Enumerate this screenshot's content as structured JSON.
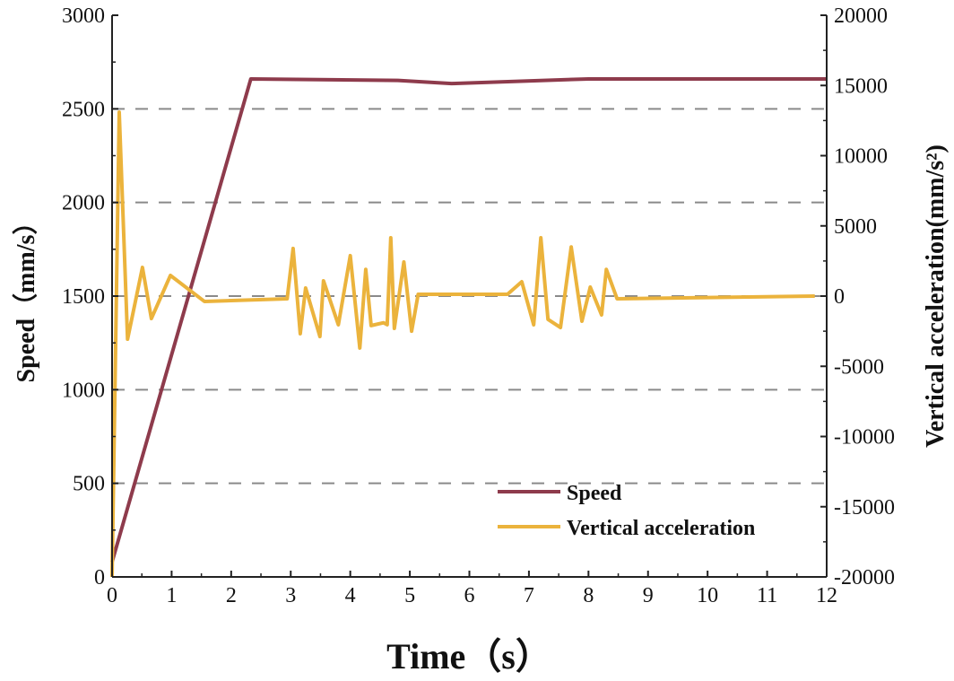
{
  "chart_data": {
    "type": "line",
    "title": "",
    "xlabel": "Time（s）",
    "ylabel": "Speed（mm/s）",
    "y2label": "Vertical acceleration(mm/s²)",
    "xlim": [
      0,
      12
    ],
    "ylim": [
      0,
      3000
    ],
    "y2lim": [
      -20000,
      20000
    ],
    "xticks": [
      0,
      1,
      2,
      3,
      4,
      5,
      6,
      7,
      8,
      9,
      10,
      11,
      12
    ],
    "yticks": [
      0,
      500,
      1000,
      1500,
      2000,
      2500,
      3000
    ],
    "y2ticks": [
      -20000,
      -15000,
      -10000,
      -5000,
      0,
      5000,
      10000,
      15000,
      20000
    ],
    "grid": "horizontal dashed",
    "legend_position": "bottom-right",
    "series": [
      {
        "name": "Speed",
        "axis": "left",
        "color": "#8E3B4C",
        "x": [
          0,
          2.33,
          4.8,
          5.7,
          8.0,
          12.0
        ],
        "y": [
          80,
          2660,
          2652,
          2635,
          2660,
          2660
        ]
      },
      {
        "name": "Vertical acceleration",
        "axis": "right",
        "color": "#EBB33C",
        "x": [
          0,
          0.12,
          0.26,
          0.51,
          0.66,
          0.98,
          1.55,
          2.94,
          3.04,
          3.16,
          3.25,
          3.49,
          3.55,
          3.8,
          4.0,
          4.16,
          4.26,
          4.35,
          4.56,
          4.62,
          4.68,
          4.74,
          4.9,
          5.03,
          5.14,
          6.64,
          6.88,
          7.08,
          7.2,
          7.32,
          7.53,
          7.71,
          7.89,
          8.03,
          8.22,
          8.3,
          8.48,
          11.8
        ],
        "y": [
          -20000,
          13100,
          -3070,
          2040,
          -1600,
          1470,
          -380,
          -190,
          3390,
          -2680,
          575,
          -2880,
          1090,
          -2040,
          2880,
          -3700,
          1900,
          -2100,
          -1900,
          -2040,
          4150,
          -2300,
          2430,
          -2500,
          130,
          130,
          1020,
          -2040,
          4150,
          -1660,
          -2240,
          3500,
          -1790,
          640,
          -1340,
          1900,
          -190,
          0
        ]
      }
    ]
  }
}
